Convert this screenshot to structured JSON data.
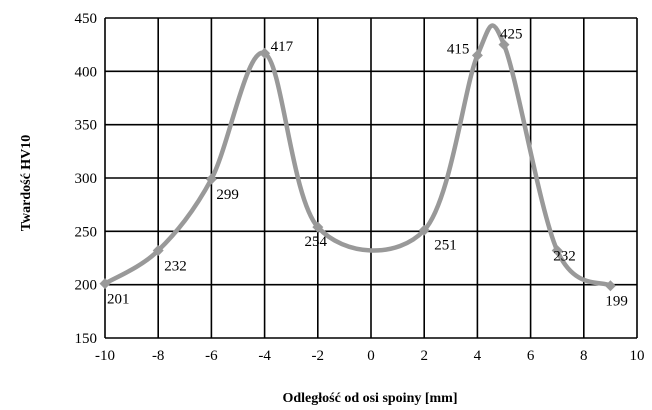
{
  "chart_data": {
    "type": "line",
    "title": "",
    "xlabel": "Odległość od osi spoiny [mm]",
    "ylabel": "Twardość HV10",
    "xlim": [
      -10,
      10
    ],
    "ylim": [
      150,
      450
    ],
    "x_ticks": [
      -10,
      -8,
      -6,
      -4,
      -2,
      0,
      2,
      4,
      6,
      8,
      10
    ],
    "y_ticks": [
      150,
      200,
      250,
      300,
      350,
      400,
      450
    ],
    "grid": true,
    "legend": "none",
    "line_color": "#999999",
    "series": [
      {
        "x": [
          -10,
          -8,
          -6,
          -4,
          -2,
          2,
          4,
          5,
          7,
          9
        ],
        "y": [
          201,
          232,
          299,
          417,
          254,
          251,
          415,
          425,
          232,
          199
        ],
        "labels": [
          "201",
          "232",
          "299",
          "417",
          "254",
          "251",
          "415",
          "425",
          "232",
          "199"
        ]
      }
    ]
  }
}
